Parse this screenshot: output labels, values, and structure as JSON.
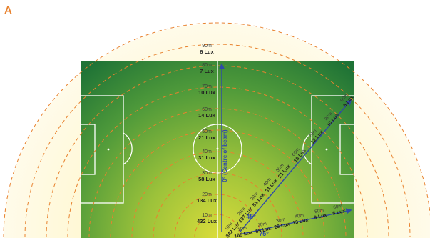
{
  "panel_label": "A",
  "colors": {
    "accent": "#e8822e",
    "arrow": "#2e4aa8",
    "field_light": "#d4d83a",
    "field_dark": "#1e7a3a",
    "halo": "#fff6c8"
  },
  "vertical_rings": [
    {
      "dist": "90m",
      "lux": "6 Lux"
    },
    {
      "dist": "80m",
      "lux": "7 Lux"
    },
    {
      "dist": "70m",
      "lux": "10 Lux"
    },
    {
      "dist": "60m",
      "lux": "14 Lux"
    },
    {
      "dist": "50m",
      "lux": "21 Lux"
    },
    {
      "dist": "40m",
      "lux": "31 Lux"
    },
    {
      "dist": "30m",
      "lux": "58 Lux"
    },
    {
      "dist": "20m",
      "lux": "134 Lux"
    },
    {
      "dist": "10m",
      "lux": "432 Lux"
    }
  ],
  "beam_label": "0° (Centre of beam)",
  "diag45": {
    "angle": "45°",
    "labels": [
      {
        "dist": "10m",
        "lux": "342 Lux"
      },
      {
        "dist": "20m",
        "lux": "107 Lux"
      },
      {
        "dist": "30m",
        "lux": "51 Lux"
      },
      {
        "dist": "40m",
        "lux": "31 Lux"
      },
      {
        "dist": "50m",
        "lux": "21 Lux"
      },
      {
        "dist": "60m",
        "lux": "16 Lux"
      },
      {
        "dist": "70m",
        "lux": "12 Lux"
      },
      {
        "dist": "80m",
        "lux": "10 Lux"
      },
      {
        "dist": "90m",
        "lux": "6 Lux"
      }
    ]
  },
  "diag75": {
    "angle": "75°",
    "labels": [
      {
        "dist": "10m",
        "lux": "165 Lux"
      },
      {
        "dist": "20m",
        "lux": "55 Lux"
      },
      {
        "dist": "30m",
        "lux": "26 Lux"
      },
      {
        "dist": "40m",
        "lux": "13 Lux"
      },
      {
        "dist": "50m",
        "lux": "9 Lux"
      },
      {
        "dist": "60m",
        "lux": "5 Lux"
      }
    ]
  }
}
